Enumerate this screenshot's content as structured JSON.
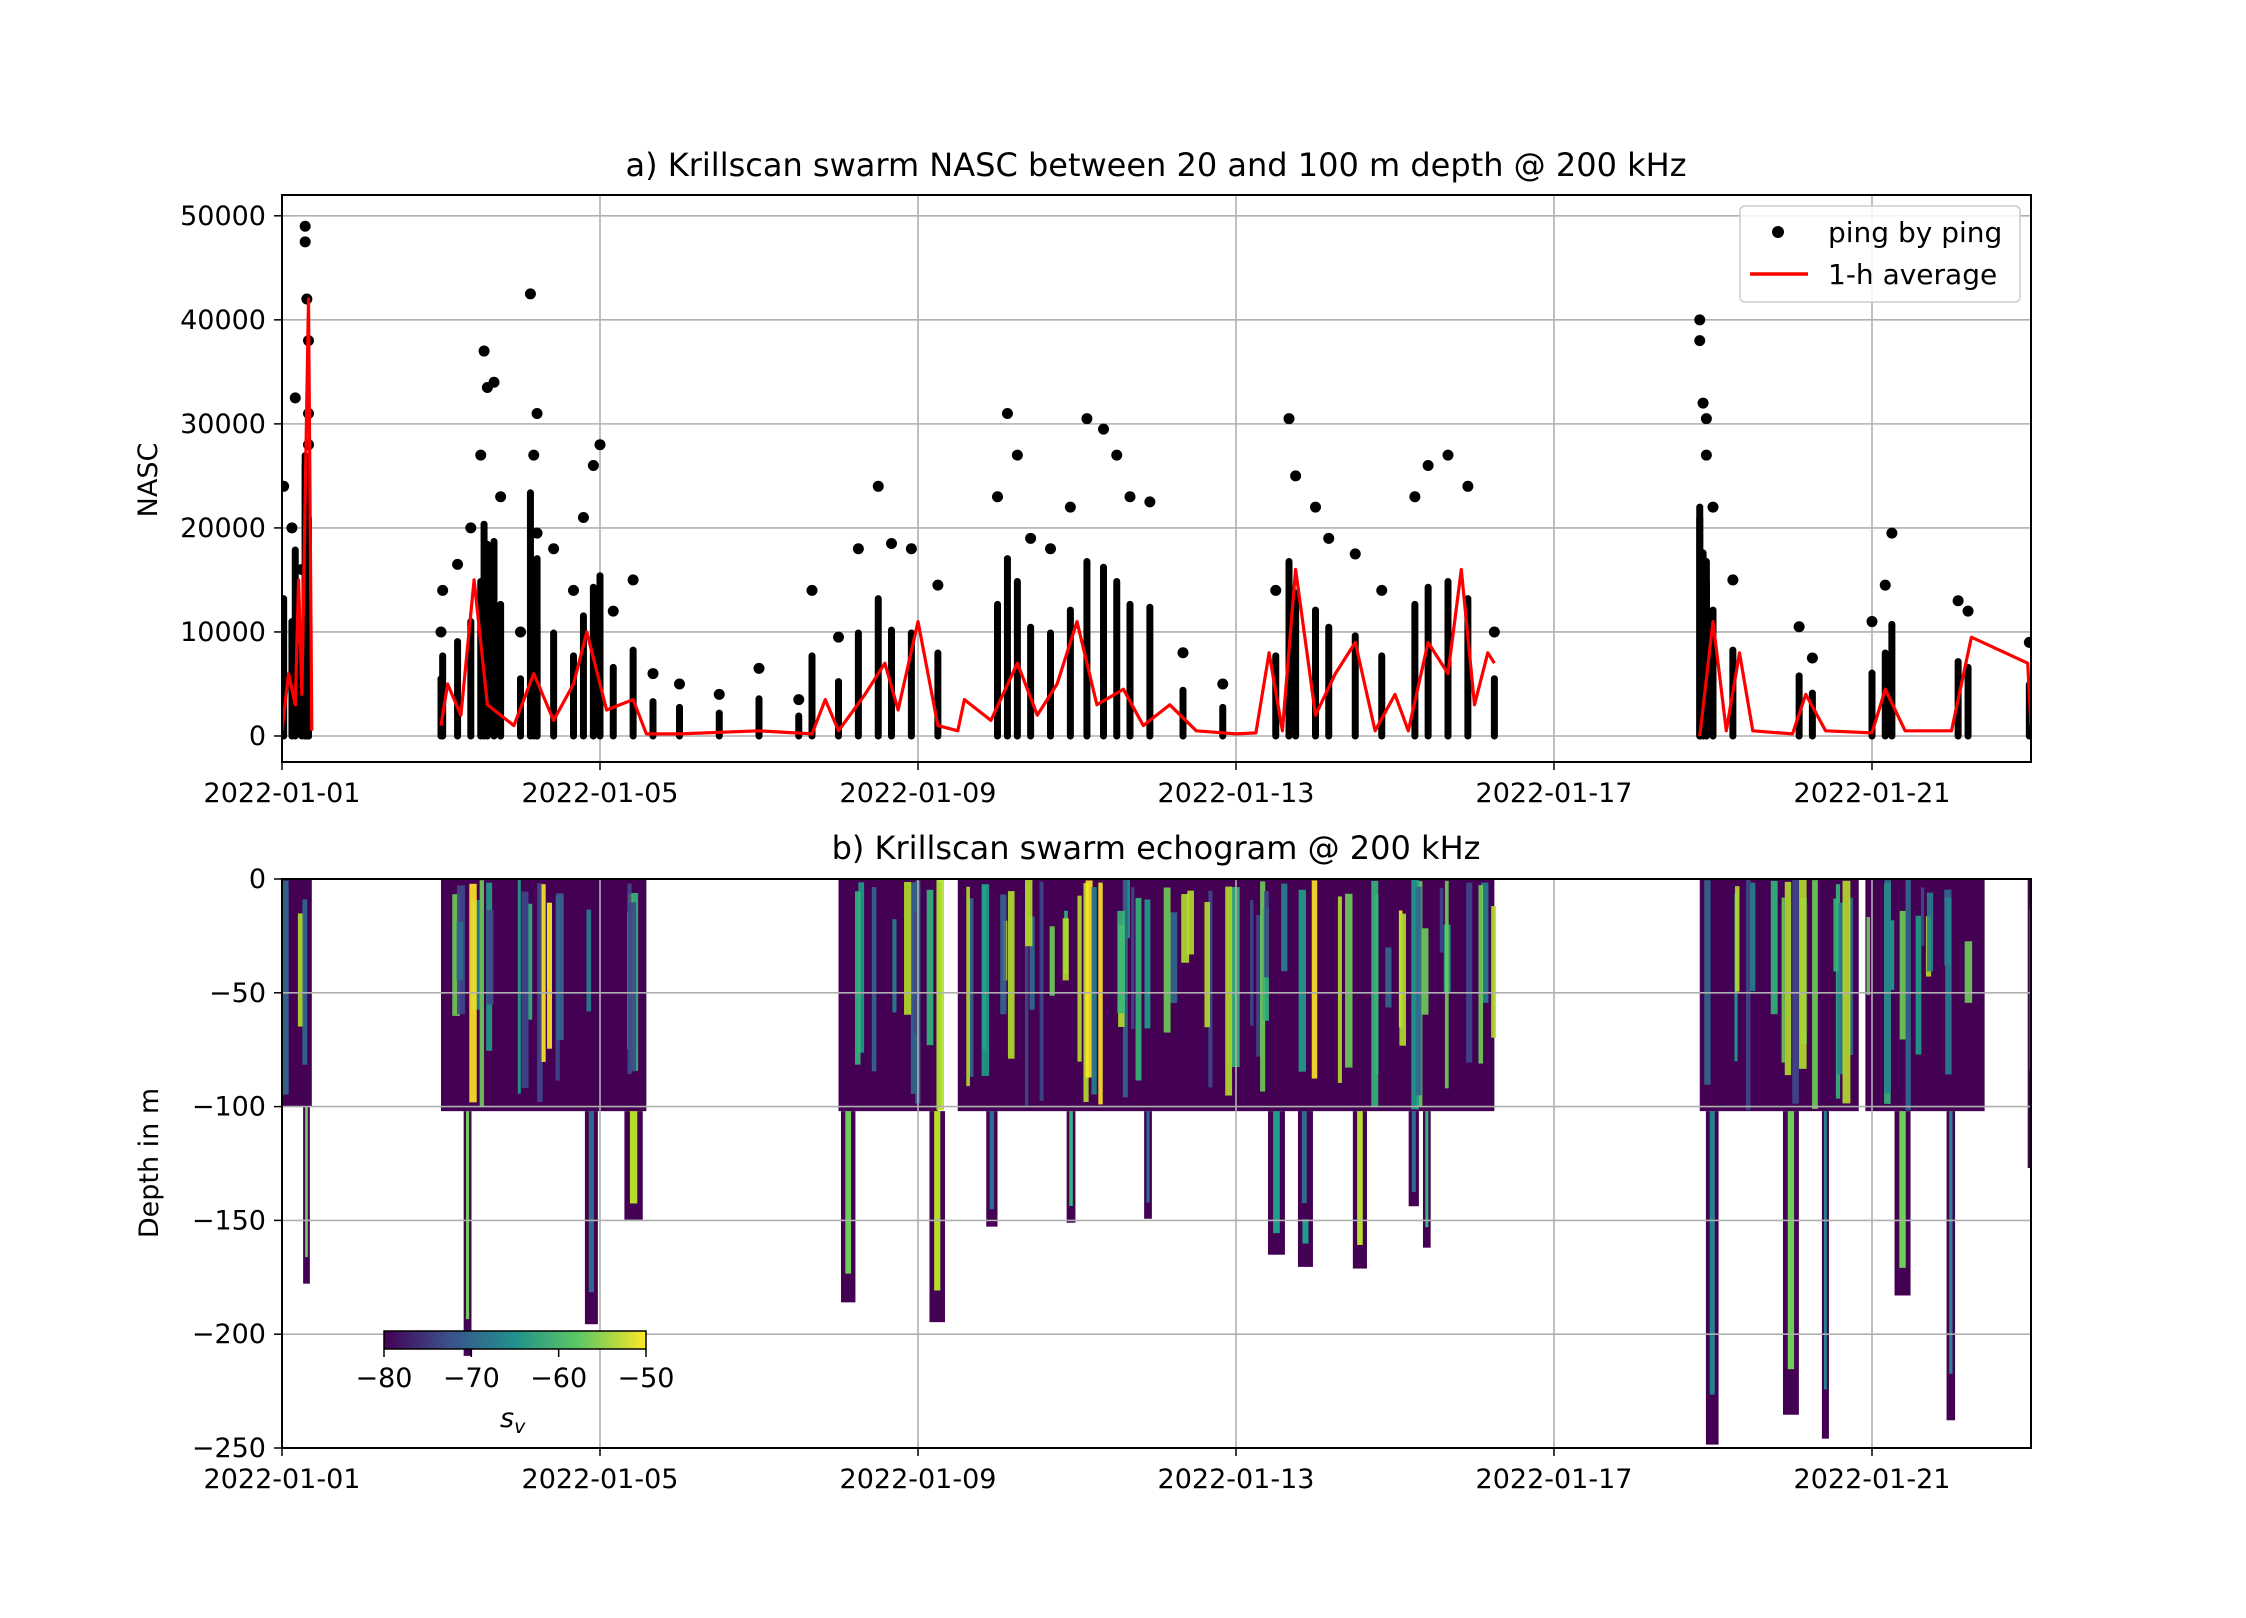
{
  "chart_data": [
    {
      "type": "scatter",
      "title": "a) Krillscan swarm NASC between 20 and 100 m depth @ 200 kHz",
      "xlabel": "",
      "ylabel": "NASC",
      "x_axis": "date",
      "xlim": [
        "2022-01-01",
        "2022-01-23"
      ],
      "ylim": [
        -2500,
        52000
      ],
      "xticks": [
        "2022-01-01",
        "2022-01-05",
        "2022-01-09",
        "2022-01-13",
        "2022-01-17",
        "2022-01-21"
      ],
      "yticks": [
        0,
        10000,
        20000,
        30000,
        40000,
        50000
      ],
      "ytick_labels": [
        "0",
        "10000",
        "20000",
        "30000",
        "40000",
        "50000"
      ],
      "grid": true,
      "legend": "top-right",
      "series": [
        {
          "name": "ping by ping",
          "kind": "scatter",
          "color": "#000000",
          "points": [
            [
              "2022-01-01T00:30",
              24000
            ],
            [
              "2022-01-01T03:00",
              20000
            ],
            [
              "2022-01-01T04:00",
              32500
            ],
            [
              "2022-01-01T06:00",
              16000
            ],
            [
              "2022-01-01T07:00",
              49000
            ],
            [
              "2022-01-01T07:00",
              47500
            ],
            [
              "2022-01-01T07:30",
              42000
            ],
            [
              "2022-01-01T08:00",
              38000
            ],
            [
              "2022-01-01T08:00",
              31000
            ],
            [
              "2022-01-01T08:00",
              28000
            ],
            [
              "2022-01-03T00:00",
              10000
            ],
            [
              "2022-01-03T00:30",
              14000
            ],
            [
              "2022-01-03T05:00",
              16500
            ],
            [
              "2022-01-03T09:00",
              20000
            ],
            [
              "2022-01-03T12:00",
              27000
            ],
            [
              "2022-01-03T13:00",
              37000
            ],
            [
              "2022-01-03T14:00",
              33500
            ],
            [
              "2022-01-03T16:00",
              34000
            ],
            [
              "2022-01-03T18:00",
              23000
            ],
            [
              "2022-01-04T00:00",
              10000
            ],
            [
              "2022-01-04T03:00",
              42500
            ],
            [
              "2022-01-04T05:00",
              31000
            ],
            [
              "2022-01-04T04:00",
              27000
            ],
            [
              "2022-01-04T05:00",
              19500
            ],
            [
              "2022-01-04T10:00",
              18000
            ],
            [
              "2022-01-04T16:00",
              14000
            ],
            [
              "2022-01-04T19:00",
              21000
            ],
            [
              "2022-01-04T22:00",
              26000
            ],
            [
              "2022-01-05T00:00",
              28000
            ],
            [
              "2022-01-05T04:00",
              12000
            ],
            [
              "2022-01-05T10:00",
              15000
            ],
            [
              "2022-01-05T16:00",
              6000
            ],
            [
              "2022-01-06T00:00",
              5000
            ],
            [
              "2022-01-06T12:00",
              4000
            ],
            [
              "2022-01-07T00:00",
              6500
            ],
            [
              "2022-01-07T12:00",
              3500
            ],
            [
              "2022-01-07T16:00",
              14000
            ],
            [
              "2022-01-08T00:00",
              9500
            ],
            [
              "2022-01-08T06:00",
              18000
            ],
            [
              "2022-01-08T12:00",
              24000
            ],
            [
              "2022-01-08T16:00",
              18500
            ],
            [
              "2022-01-08T22:00",
              18000
            ],
            [
              "2022-01-09T06:00",
              14500
            ],
            [
              "2022-01-10T00:00",
              23000
            ],
            [
              "2022-01-10T03:00",
              31000
            ],
            [
              "2022-01-10T06:00",
              27000
            ],
            [
              "2022-01-10T10:00",
              19000
            ],
            [
              "2022-01-10T16:00",
              18000
            ],
            [
              "2022-01-10T22:00",
              22000
            ],
            [
              "2022-01-11T03:00",
              30500
            ],
            [
              "2022-01-11T08:00",
              29500
            ],
            [
              "2022-01-11T12:00",
              27000
            ],
            [
              "2022-01-11T16:00",
              23000
            ],
            [
              "2022-01-11T22:00",
              22500
            ],
            [
              "2022-01-12T08:00",
              8000
            ],
            [
              "2022-01-12T20:00",
              5000
            ],
            [
              "2022-01-13T12:00",
              14000
            ],
            [
              "2022-01-13T16:00",
              30500
            ],
            [
              "2022-01-13T18:00",
              25000
            ],
            [
              "2022-01-14T00:00",
              22000
            ],
            [
              "2022-01-14T04:00",
              19000
            ],
            [
              "2022-01-14T12:00",
              17500
            ],
            [
              "2022-01-14T20:00",
              14000
            ],
            [
              "2022-01-15T06:00",
              23000
            ],
            [
              "2022-01-15T10:00",
              26000
            ],
            [
              "2022-01-15T16:00",
              27000
            ],
            [
              "2022-01-15T22:00",
              24000
            ],
            [
              "2022-01-16T06:00",
              10000
            ],
            [
              "2022-01-18T20:00",
              40000
            ],
            [
              "2022-01-18T20:00",
              38000
            ],
            [
              "2022-01-18T21:00",
              32000
            ],
            [
              "2022-01-18T22:00",
              30500
            ],
            [
              "2022-01-18T22:00",
              27000
            ],
            [
              "2022-01-19T00:00",
              22000
            ],
            [
              "2022-01-19T06:00",
              15000
            ],
            [
              "2022-01-20T02:00",
              10500
            ],
            [
              "2022-01-20T06:00",
              7500
            ],
            [
              "2022-01-21T00:00",
              11000
            ],
            [
              "2022-01-21T04:00",
              14500
            ],
            [
              "2022-01-21T06:00",
              19500
            ],
            [
              "2022-01-22T02:00",
              13000
            ],
            [
              "2022-01-22T05:00",
              12000
            ],
            [
              "2022-01-22T23:30",
              9000
            ]
          ]
        },
        {
          "name": "1-h average",
          "kind": "line",
          "color": "#ff0000",
          "points": [
            [
              "2022-01-01T00:00",
              500
            ],
            [
              "2022-01-01T02:00",
              6000
            ],
            [
              "2022-01-01T04:00",
              3000
            ],
            [
              "2022-01-01T05:00",
              15000
            ],
            [
              "2022-01-01T06:00",
              4000
            ],
            [
              "2022-01-01T08:00",
              42000
            ],
            [
              "2022-01-01T09:00",
              500
            ],
            [
              "2022-01-03T00:00",
              1000
            ],
            [
              "2022-01-03T02:00",
              5000
            ],
            [
              "2022-01-03T06:00",
              2000
            ],
            [
              "2022-01-03T10:00",
              15000
            ],
            [
              "2022-01-03T14:00",
              3000
            ],
            [
              "2022-01-03T22:00",
              1000
            ],
            [
              "2022-01-04T04:00",
              6000
            ],
            [
              "2022-01-04T10:00",
              1500
            ],
            [
              "2022-01-04T16:00",
              5000
            ],
            [
              "2022-01-04T20:00",
              10000
            ],
            [
              "2022-01-05T02:00",
              2500
            ],
            [
              "2022-01-05T10:00",
              3500
            ],
            [
              "2022-01-05T14:00",
              200
            ],
            [
              "2022-01-06T00:00",
              200
            ],
            [
              "2022-01-07T00:00",
              500
            ],
            [
              "2022-01-07T16:00",
              200
            ],
            [
              "2022-01-07T20:00",
              3500
            ],
            [
              "2022-01-08T00:00",
              500
            ],
            [
              "2022-01-08T08:00",
              4000
            ],
            [
              "2022-01-08T14:00",
              7000
            ],
            [
              "2022-01-08T18:00",
              2500
            ],
            [
              "2022-01-09T00:00",
              11000
            ],
            [
              "2022-01-09T06:00",
              1000
            ],
            [
              "2022-01-09T12:00",
              500
            ],
            [
              "2022-01-09T14:00",
              3500
            ],
            [
              "2022-01-09T22:00",
              1500
            ],
            [
              "2022-01-10T06:00",
              7000
            ],
            [
              "2022-01-10T12:00",
              2000
            ],
            [
              "2022-01-10T18:00",
              5000
            ],
            [
              "2022-01-11T00:00",
              11000
            ],
            [
              "2022-01-11T06:00",
              3000
            ],
            [
              "2022-01-11T14:00",
              4500
            ],
            [
              "2022-01-11T20:00",
              1000
            ],
            [
              "2022-01-12T04:00",
              3000
            ],
            [
              "2022-01-12T12:00",
              500
            ],
            [
              "2022-01-13T00:00",
              200
            ],
            [
              "2022-01-13T06:00",
              300
            ],
            [
              "2022-01-13T10:00",
              8000
            ],
            [
              "2022-01-13T14:00",
              500
            ],
            [
              "2022-01-13T18:00",
              16000
            ],
            [
              "2022-01-14T00:00",
              2000
            ],
            [
              "2022-01-14T06:00",
              6000
            ],
            [
              "2022-01-14T12:00",
              9000
            ],
            [
              "2022-01-14T18:00",
              500
            ],
            [
              "2022-01-15T00:00",
              4000
            ],
            [
              "2022-01-15T04:00",
              500
            ],
            [
              "2022-01-15T10:00",
              9000
            ],
            [
              "2022-01-15T16:00",
              6000
            ],
            [
              "2022-01-15T20:00",
              16000
            ],
            [
              "2022-01-16T00:00",
              3000
            ],
            [
              "2022-01-16T04:00",
              8000
            ],
            [
              "2022-01-16T06:00",
              7000
            ],
            [
              "2022-01-18T20:00",
              0
            ],
            [
              "2022-01-19T00:00",
              11000
            ],
            [
              "2022-01-19T04:00",
              500
            ],
            [
              "2022-01-19T08:00",
              8000
            ],
            [
              "2022-01-19T12:00",
              500
            ],
            [
              "2022-01-20T00:00",
              200
            ],
            [
              "2022-01-20T04:00",
              4000
            ],
            [
              "2022-01-20T10:00",
              500
            ],
            [
              "2022-01-21T00:00",
              300
            ],
            [
              "2022-01-21T04:00",
              4500
            ],
            [
              "2022-01-21T10:00",
              500
            ],
            [
              "2022-01-22T00:00",
              500
            ],
            [
              "2022-01-22T06:00",
              9500
            ],
            [
              "2022-01-22T23:00",
              7000
            ],
            [
              "2022-01-23T00:00",
              1000
            ]
          ]
        }
      ]
    },
    {
      "type": "heatmap",
      "title": "b) Krillscan swarm echogram @ 200 kHz",
      "xlabel": "",
      "ylabel": "Depth in m",
      "x_axis": "date",
      "xlim": [
        "2022-01-01",
        "2022-01-23"
      ],
      "ylim": [
        -250,
        0
      ],
      "xticks": [
        "2022-01-01",
        "2022-01-05",
        "2022-01-09",
        "2022-01-13",
        "2022-01-17",
        "2022-01-21"
      ],
      "yticks": [
        0,
        -50,
        -100,
        -150,
        -200,
        -250
      ],
      "ytick_labels": [
        "0",
        "−50",
        "−100",
        "−150",
        "−200",
        "−250"
      ],
      "grid": true,
      "colormap": "viridis",
      "colorbar": {
        "label_main": "s",
        "label_sub": "v",
        "range": [
          -80,
          -50
        ],
        "ticks": [
          -80,
          -70,
          -60,
          -50
        ],
        "tick_labels": [
          "−80",
          "−70",
          "−60",
          "−50"
        ],
        "placement": "lower-left"
      },
      "segments": [
        {
          "start": "2022-01-01T00:00",
          "end": "2022-01-01T09:00",
          "surface_depth": -100,
          "deep_depth": -195
        },
        {
          "start": "2022-01-03T00:00",
          "end": "2022-01-05T14:00",
          "surface_depth": -102,
          "deep_depth": -215
        },
        {
          "start": "2022-01-08T00:00",
          "end": "2022-01-09T06:00",
          "surface_depth": -102,
          "deep_depth": -200
        },
        {
          "start": "2022-01-09T12:00",
          "end": "2022-01-16T06:00",
          "surface_depth": -102,
          "deep_depth": -176
        },
        {
          "start": "2022-01-18T20:00",
          "end": "2022-01-20T20:00",
          "surface_depth": -102,
          "deep_depth": -250
        },
        {
          "start": "2022-01-20T22:00",
          "end": "2022-01-22T10:00",
          "surface_depth": -102,
          "deep_depth": -250
        },
        {
          "start": "2022-01-22T23:00",
          "end": "2022-01-23T00:00",
          "surface_depth": -127,
          "deep_depth": -127
        }
      ]
    }
  ]
}
